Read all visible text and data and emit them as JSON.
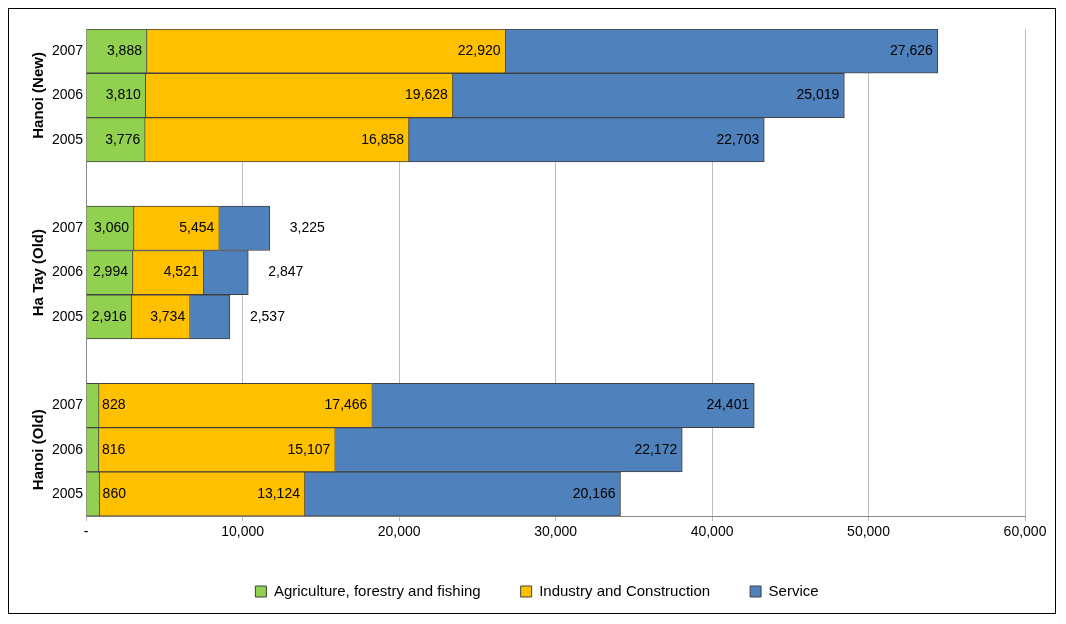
{
  "chart_data": {
    "type": "bar",
    "orientation": "horizontal",
    "stacked": true,
    "categories": [
      "2007",
      "2006",
      "2005",
      null,
      "2007",
      "2006",
      "2005",
      null,
      "2007",
      "2006",
      "2005"
    ],
    "series": [
      {
        "name": "Agriculture, forestry and fishing",
        "color": "#92d050",
        "values": [
          3888,
          3810,
          3776,
          null,
          3060,
          2994,
          2916,
          null,
          828,
          816,
          860
        ],
        "value_labels": [
          "3,888",
          "3,810",
          "3,776",
          null,
          "3,060",
          "2,994",
          "2,916",
          null,
          "828",
          "816",
          "860"
        ]
      },
      {
        "name": "Industry and Construction",
        "color": "#ffc000",
        "values": [
          22920,
          19628,
          16858,
          null,
          5454,
          4521,
          3734,
          null,
          17466,
          15107,
          13124
        ],
        "value_labels": [
          "22,920",
          "19,628",
          "16,858",
          null,
          "5,454",
          "4,521",
          "3,734",
          null,
          "17,466",
          "15,107",
          "13,124"
        ]
      },
      {
        "name": "Service",
        "color": "#4f81bd",
        "values": [
          27626,
          25019,
          22703,
          null,
          3225,
          2847,
          2537,
          null,
          24401,
          22172,
          20166
        ],
        "value_labels": [
          "27,626",
          "25,019",
          "22,703",
          null,
          "3,225",
          "2,847",
          "2,537",
          null,
          "24,401",
          "22,172",
          "20,166"
        ]
      }
    ],
    "annotations": [
      "Hanoi (New)",
      "Ha Tay (Old)",
      "Hanoi (Old)"
    ],
    "xlim": [
      0,
      60000
    ],
    "xticks": [
      {
        "value": 0,
        "label": "-"
      },
      {
        "value": 10000,
        "label": "10,000"
      },
      {
        "value": 20000,
        "label": "20,000"
      },
      {
        "value": 30000,
        "label": "30,000"
      },
      {
        "value": 40000,
        "label": "40,000"
      },
      {
        "value": 50000,
        "label": "50,000"
      },
      {
        "value": 60000,
        "label": "60,000"
      }
    ],
    "grid": "x",
    "legend": "bottom"
  }
}
